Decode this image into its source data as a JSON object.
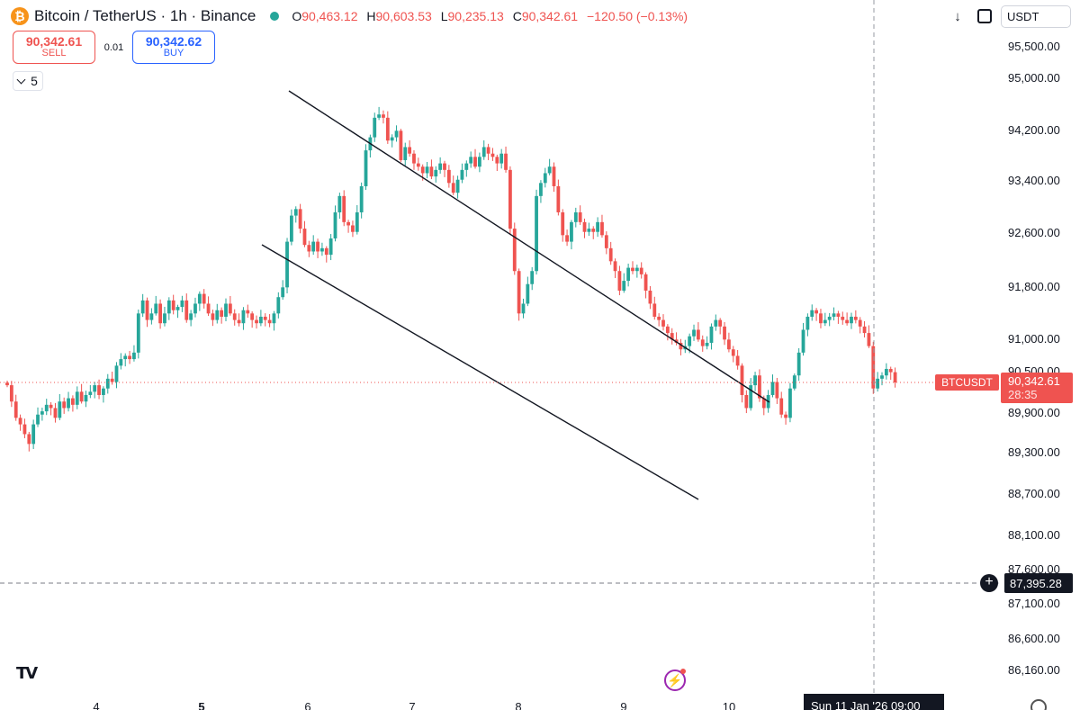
{
  "header": {
    "title": "Bitcoin / TetherUS · 1h · Binance",
    "icon": "bitcoin-icon",
    "ohlc": {
      "o_label": "O",
      "o": "90,463.12",
      "h_label": "H",
      "h": "90,603.53",
      "l_label": "L",
      "l": "90,235.13",
      "c_label": "C",
      "c": "90,342.61",
      "change": "−120.50 (−0.13%)"
    }
  },
  "trade": {
    "sell_price": "90,342.61",
    "sell_label": "SELL",
    "spread": "0.01",
    "buy_price": "90,342.62",
    "buy_label": "BUY"
  },
  "indicators": {
    "count": "5"
  },
  "toolbar": {
    "currency": "USDT",
    "download_icon": "arrow-down-icon",
    "screenshot_icon": "screenshot-icon"
  },
  "price_scale": {
    "labels": [
      "95,500.00",
      "95,000.00",
      "94,200.00",
      "93,400.00",
      "92,600.00",
      "91,800.00",
      "91,000.00",
      "90,500.00",
      "89,900.00",
      "89,300.00",
      "88,700.00",
      "88,100.00",
      "87,600.00",
      "87,100.00",
      "86,600.00",
      "86,160.00"
    ],
    "symbol_tag": "BTCUSDT",
    "current_price": "90,342.61",
    "countdown": "28:35",
    "crosshair_price": "87,395.28"
  },
  "time_scale": {
    "labels": [
      "4",
      "5",
      "6",
      "7",
      "8",
      "9",
      "10"
    ],
    "crosshair_date": "Sun 11 Jan '26   09:00"
  },
  "colors": {
    "up": "#26a69a",
    "down": "#ef5350",
    "line": "#131722"
  },
  "chart_data": {
    "type": "candlestick",
    "interval": "1h",
    "yrange": [
      86000,
      95700
    ],
    "x_day_starts": [
      "4",
      "5",
      "6",
      "7",
      "8",
      "9",
      "10"
    ],
    "closes": [
      90300,
      90050,
      89800,
      89700,
      89550,
      89400,
      89700,
      89850,
      89900,
      90000,
      89950,
      89800,
      90050,
      89950,
      90100,
      90000,
      90200,
      90050,
      90150,
      90200,
      90300,
      90150,
      90250,
      90400,
      90350,
      90600,
      90700,
      90750,
      90700,
      90800,
      91400,
      91600,
      91300,
      91400,
      91550,
      91250,
      91400,
      91600,
      91450,
      91500,
      91600,
      91300,
      91400,
      91550,
      91700,
      91550,
      91400,
      91300,
      91450,
      91350,
      91550,
      91400,
      91300,
      91250,
      91450,
      91400,
      91300,
      91250,
      91350,
      91300,
      91250,
      91400,
      91650,
      91800,
      92500,
      92900,
      93000,
      92700,
      92450,
      92350,
      92500,
      92350,
      92400,
      92300,
      92550,
      92950,
      93200,
      92800,
      92750,
      92650,
      92950,
      93350,
      93900,
      94100,
      94400,
      94450,
      94400,
      94050,
      94100,
      94200,
      93750,
      93950,
      93850,
      93700,
      93650,
      93550,
      93650,
      93500,
      93600,
      93700,
      93600,
      93400,
      93250,
      93450,
      93600,
      93700,
      93800,
      93650,
      93800,
      93950,
      93850,
      93800,
      93700,
      93850,
      93600,
      92700,
      92050,
      91400,
      91550,
      91850,
      92050,
      93200,
      93400,
      93550,
      93650,
      93350,
      92950,
      92600,
      92500,
      92800,
      92950,
      92800,
      92650,
      92700,
      92650,
      92800,
      92600,
      92400,
      92200,
      92050,
      91750,
      91900,
      92100,
      92050,
      92100,
      92000,
      91750,
      91550,
      91350,
      91300,
      91200,
      91100,
      91000,
      90950,
      90850,
      90900,
      91050,
      91150,
      91000,
      90900,
      90950,
      91200,
      91300,
      91200,
      91000,
      90850,
      90750,
      90600,
      90150,
      89950,
      90300,
      90450,
      90100,
      89950,
      90150,
      90350,
      90100,
      89850,
      89800,
      90250,
      90450,
      90800,
      91150,
      91350,
      91450,
      91400,
      91250,
      91300,
      91350,
      91400,
      91350,
      91300,
      91250,
      91350,
      91300,
      91200,
      91100,
      90900,
      90250,
      90400,
      90450,
      90550,
      90500,
      90342.61
    ]
  }
}
